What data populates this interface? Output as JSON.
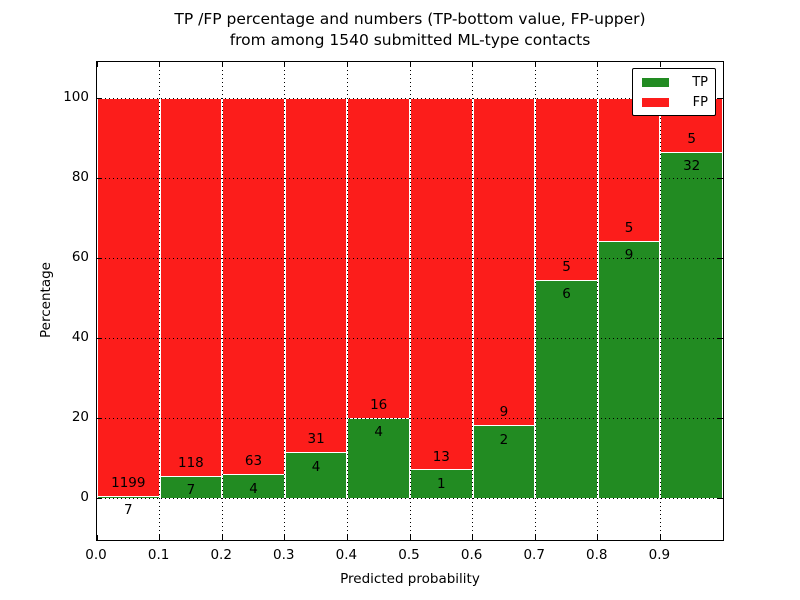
{
  "figure": {
    "title_line1": "TP /FP percentage and numbers (TP-bottom value, FP-upper)",
    "title_line2": "from among 1540 submitted ML-type contacts",
    "xlabel": "Predicted probability",
    "ylabel": "Percentage"
  },
  "chart_data": {
    "type": "bar",
    "stacked": true,
    "normalized_to_percent": true,
    "title": "TP /FP percentage and numbers (TP-bottom value, FP-upper) from among 1540 submitted ML-type contacts",
    "xlabel": "Predicted probability",
    "ylabel": "Percentage",
    "total_submitted_contacts": 1540,
    "bin_width": 0.1,
    "categories": [
      "0.0-0.1",
      "0.1-0.2",
      "0.2-0.3",
      "0.3-0.4",
      "0.4-0.5",
      "0.5-0.6",
      "0.6-0.7",
      "0.7-0.8",
      "0.8-0.9",
      "0.9-1.0"
    ],
    "x_tick_labels": [
      "0.0",
      "0.1",
      "0.2",
      "0.3",
      "0.4",
      "0.5",
      "0.6",
      "0.7",
      "0.8",
      "0.9"
    ],
    "y_ticks": [
      0,
      20,
      40,
      60,
      80,
      100
    ],
    "xlim": [
      0.0,
      1.0
    ],
    "ylim": [
      -10.5,
      109
    ],
    "grid_style": "dotted",
    "bar_edge_color": "#ffffff",
    "legend_position": "upper right",
    "series": [
      {
        "name": "TP",
        "color": "#228b22",
        "counts": [
          7,
          7,
          4,
          4,
          4,
          1,
          2,
          6,
          9,
          32
        ]
      },
      {
        "name": "FP",
        "color": "#fc1d1b",
        "counts": [
          1199,
          118,
          63,
          31,
          16,
          13,
          9,
          5,
          5,
          5
        ]
      }
    ],
    "tp_percent": [
      0.58,
      5.6,
      5.97,
      11.43,
      20.0,
      7.14,
      18.18,
      54.55,
      64.29,
      86.49
    ]
  }
}
